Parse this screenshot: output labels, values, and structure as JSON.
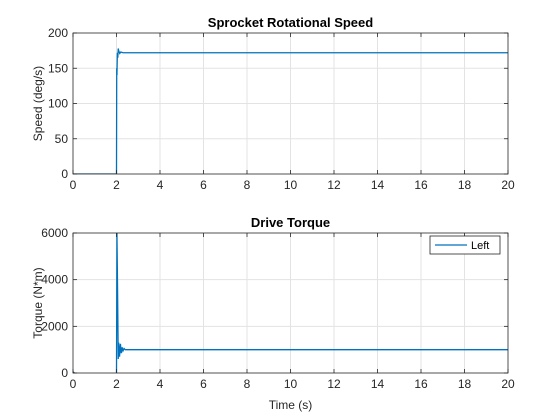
{
  "chart_data": [
    {
      "type": "line",
      "title": "Sprocket Rotational Speed",
      "xlabel": "",
      "ylabel": "Speed (deg/s)",
      "xlim": [
        0,
        20
      ],
      "ylim": [
        0,
        200
      ],
      "xticks": [
        0,
        2,
        4,
        6,
        8,
        10,
        12,
        14,
        16,
        18,
        20
      ],
      "yticks": [
        0,
        50,
        100,
        150,
        200
      ],
      "grid": true,
      "legend": null,
      "series": [
        {
          "color": "#0072BD",
          "x": [
            0,
            1.98,
            2.0,
            2.01,
            2.02,
            2.04,
            2.06,
            2.08,
            2.1,
            2.15,
            2.2,
            2.3,
            3,
            5,
            10,
            15,
            20
          ],
          "y": [
            0,
            0,
            0,
            150,
            140,
            172,
            165,
            178,
            175,
            171,
            173,
            172,
            172,
            172,
            172,
            172,
            172
          ]
        }
      ]
    },
    {
      "type": "line",
      "title": "Drive Torque",
      "xlabel": "Time (s)",
      "ylabel": "Torque (N*m)",
      "xlim": [
        0,
        20
      ],
      "ylim": [
        0,
        6000
      ],
      "xticks": [
        0,
        2,
        4,
        6,
        8,
        10,
        12,
        14,
        16,
        18,
        20
      ],
      "yticks": [
        0,
        2000,
        4000,
        6000
      ],
      "grid": true,
      "legend": "top-right",
      "series": [
        {
          "name": "Left",
          "color": "#0072BD",
          "x": [
            0,
            0.1,
            0.2,
            0.4,
            1.98,
            2.0,
            2.02,
            2.05,
            2.08,
            2.1,
            2.14,
            2.18,
            2.22,
            2.26,
            2.3,
            2.35,
            2.4,
            2.5,
            3,
            5,
            10,
            15,
            20
          ],
          "y": [
            50,
            -20,
            -30,
            -40,
            -40,
            0,
            6000,
            3500,
            600,
            1300,
            700,
            1250,
            850,
            1100,
            950,
            1050,
            1000,
            1000,
            1000,
            1000,
            1000,
            1000,
            1000
          ]
        }
      ]
    }
  ]
}
